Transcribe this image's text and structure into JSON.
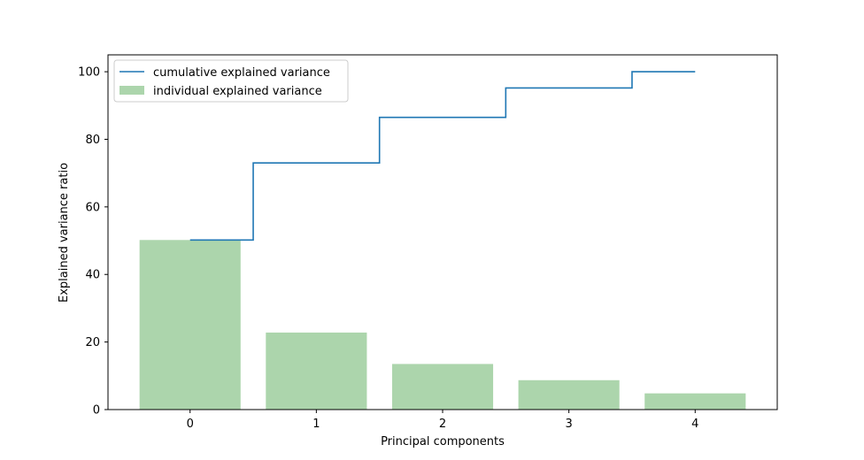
{
  "chart_data": {
    "type": "bar",
    "title": "",
    "xlabel": "Principal components",
    "ylabel": "Explained variance ratio",
    "categories": [
      "0",
      "1",
      "2",
      "3",
      "4"
    ],
    "x": [
      0,
      1,
      2,
      3,
      4
    ],
    "xlim": [
      -0.65,
      4.65
    ],
    "ylim": [
      0,
      105
    ],
    "yticks": [
      0,
      20,
      40,
      60,
      80,
      100
    ],
    "grid": false,
    "legend": {
      "placement": "top-left",
      "entries": [
        "cumulative explained variance",
        "individual explained variance"
      ]
    },
    "series": [
      {
        "name": "individual explained variance",
        "type": "bar",
        "values": [
          50.2,
          22.8,
          13.5,
          8.7,
          4.8
        ],
        "color": "#acd5ac"
      },
      {
        "name": "cumulative explained variance",
        "type": "step",
        "step_where": "mid",
        "values": [
          50.2,
          73.0,
          86.5,
          95.2,
          100.0
        ],
        "color": "#1f77b4"
      }
    ]
  }
}
